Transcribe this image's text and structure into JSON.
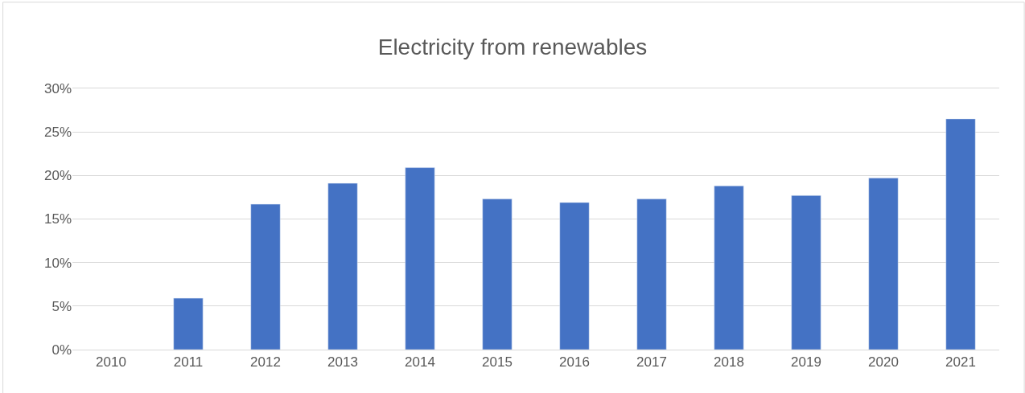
{
  "chart_data": {
    "type": "bar",
    "title": "Electricity from renewables",
    "categories": [
      "2010",
      "2011",
      "2012",
      "2013",
      "2014",
      "2015",
      "2016",
      "2017",
      "2018",
      "2019",
      "2020",
      "2021"
    ],
    "values": [
      null,
      5.9,
      16.7,
      19.1,
      20.9,
      17.3,
      16.9,
      17.3,
      18.8,
      17.7,
      19.7,
      26.5
    ],
    "color": "#4472c4",
    "ylim": [
      0,
      30
    ],
    "yticks": [
      {
        "value": 0,
        "label": "0%"
      },
      {
        "value": 5,
        "label": "5%"
      },
      {
        "value": 10,
        "label": "10%"
      },
      {
        "value": 15,
        "label": "15%"
      },
      {
        "value": 20,
        "label": "20%"
      },
      {
        "value": 25,
        "label": "25%"
      },
      {
        "value": 30,
        "label": "30%"
      }
    ],
    "grid": "y"
  }
}
